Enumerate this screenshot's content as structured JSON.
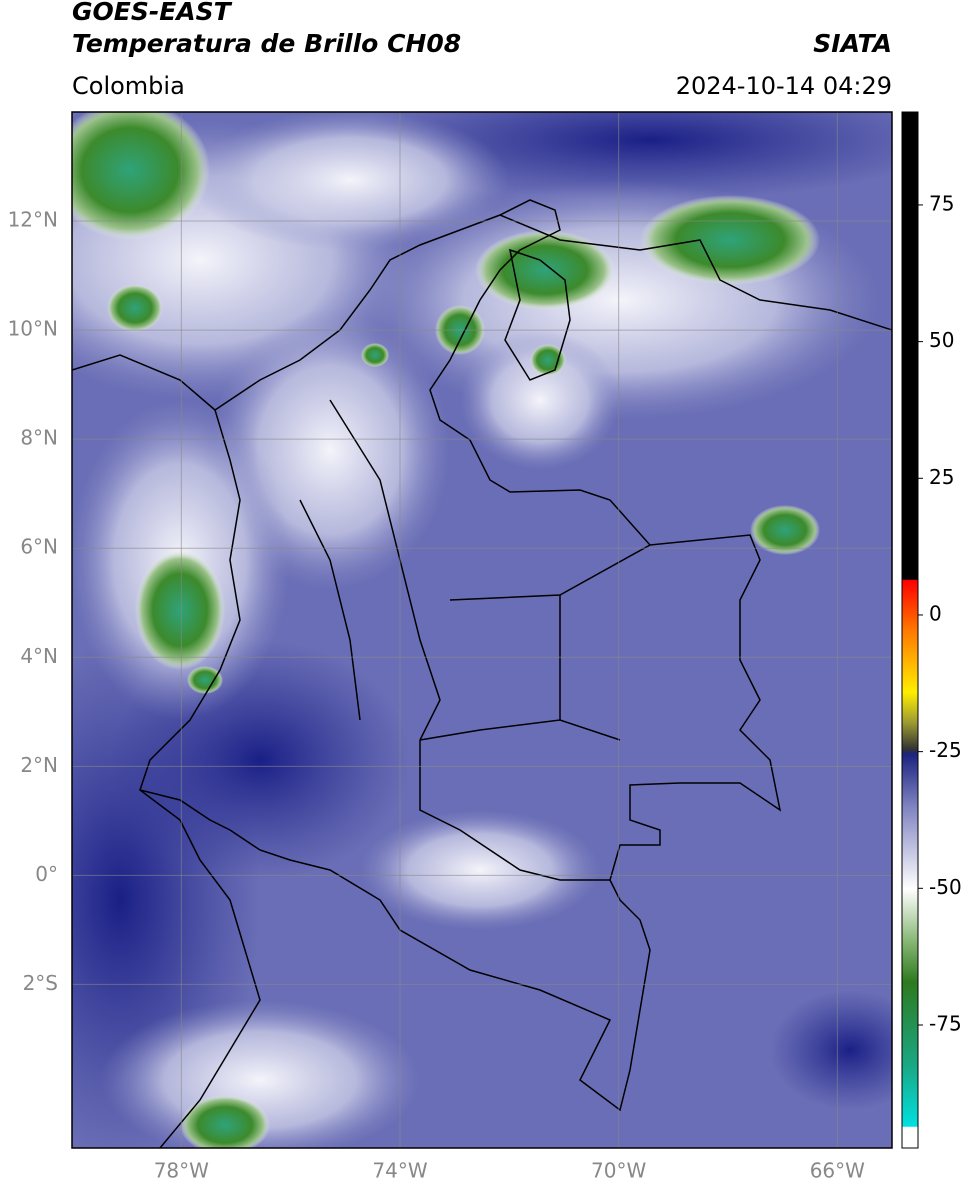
{
  "header": {
    "title": "GOES-EAST",
    "subtitle": "Temperatura de Brillo CH08",
    "source": "SIATA",
    "region": "Colombia",
    "datetime": "2024-10-14 04:29"
  },
  "map": {
    "xlim": [
      -80,
      -65
    ],
    "ylim": [
      -5,
      14
    ],
    "xticks": [
      {
        "value": -78,
        "label": "78°W"
      },
      {
        "value": -74,
        "label": "74°W"
      },
      {
        "value": -70,
        "label": "70°W"
      },
      {
        "value": -66,
        "label": "66°W"
      }
    ],
    "yticks": [
      {
        "value": 12,
        "label": "12°N"
      },
      {
        "value": 10,
        "label": "10°N"
      },
      {
        "value": 8,
        "label": "8°N"
      },
      {
        "value": 6,
        "label": "6°N"
      },
      {
        "value": 4,
        "label": "4°N"
      },
      {
        "value": 2,
        "label": "2°N"
      },
      {
        "value": 0,
        "label": "0°"
      },
      {
        "value": -2,
        "label": "2°S"
      }
    ],
    "grid": true
  },
  "colorbar": {
    "lim": [
      -97.5,
      92
    ],
    "ticks": [
      75,
      50,
      25,
      0,
      -25,
      -50,
      -75
    ]
  }
}
